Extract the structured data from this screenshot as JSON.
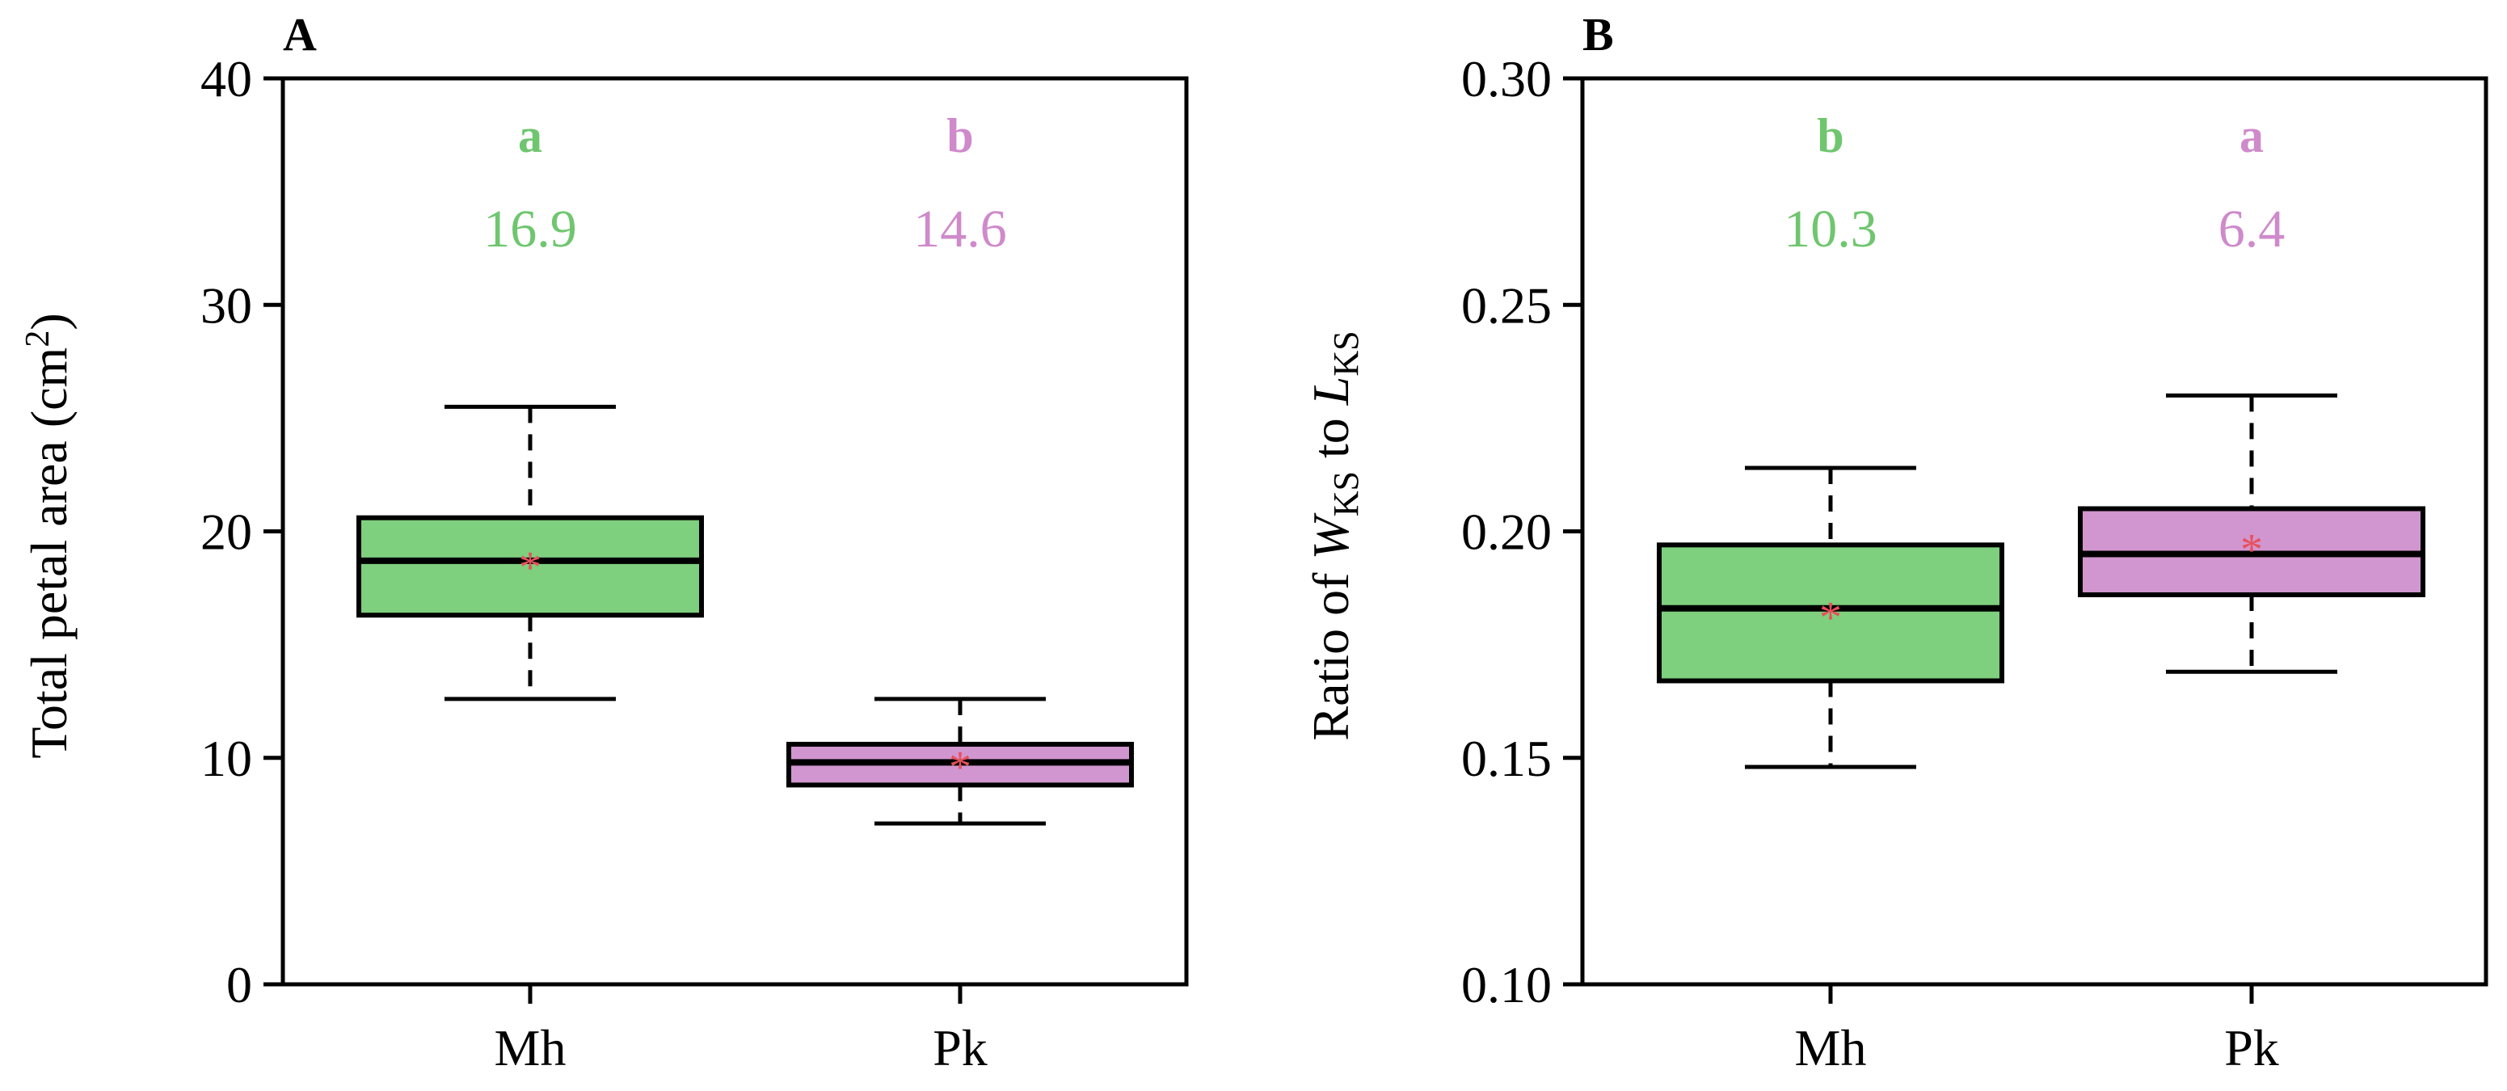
{
  "chart_data": [
    {
      "panel": "A",
      "type": "box",
      "ylabel_text": "Total petal area (cm",
      "ylabel_sup": "2",
      "ylabel_close": ")",
      "ylim": [
        0,
        40
      ],
      "yticks": [
        0,
        10,
        20,
        30,
        40
      ],
      "ytick_labels": [
        "0",
        "10",
        "20",
        "30",
        "40"
      ],
      "categories": [
        "Mh",
        "Pk"
      ],
      "boxes": [
        {
          "name": "Mh",
          "min": 12.6,
          "q1": 16.3,
          "median": 18.7,
          "q3": 20.6,
          "max": 25.5,
          "mean": 18.6,
          "color": "#7ecf7e",
          "letter": "a",
          "value": "16.9",
          "text_color": "#6fc66f"
        },
        {
          "name": "Pk",
          "min": 7.1,
          "q1": 8.8,
          "median": 9.8,
          "q3": 10.6,
          "max": 12.6,
          "mean": 9.8,
          "color": "#d196cf",
          "letter": "b",
          "value": "14.6",
          "text_color": "#cf8acb"
        }
      ],
      "mean_marker": "*",
      "mean_color": "#e8505b"
    },
    {
      "panel": "B",
      "type": "box",
      "ylabel_text": "Ratio of ",
      "ylabel_w": "W",
      "ylabel_sub1": "KS",
      "ylabel_mid": " to ",
      "ylabel_l": "L",
      "ylabel_sub2": "KS",
      "ylim": [
        0.1,
        0.3
      ],
      "yticks": [
        0.1,
        0.15,
        0.2,
        0.25,
        0.3
      ],
      "ytick_labels": [
        "0.10",
        "0.15",
        "0.20",
        "0.25",
        "0.30"
      ],
      "categories": [
        "Mh",
        "Pk"
      ],
      "boxes": [
        {
          "name": "Mh",
          "min": 0.148,
          "q1": 0.167,
          "median": 0.183,
          "q3": 0.197,
          "max": 0.214,
          "mean": 0.182,
          "color": "#7ecf7e",
          "letter": "b",
          "value": "10.3",
          "text_color": "#6fc66f"
        },
        {
          "name": "Pk",
          "min": 0.169,
          "q1": 0.186,
          "median": 0.195,
          "q3": 0.205,
          "max": 0.23,
          "mean": 0.197,
          "color": "#d196cf",
          "letter": "a",
          "value": "6.4",
          "text_color": "#cf8acb"
        }
      ],
      "mean_marker": "*",
      "mean_color": "#e8505b"
    }
  ]
}
